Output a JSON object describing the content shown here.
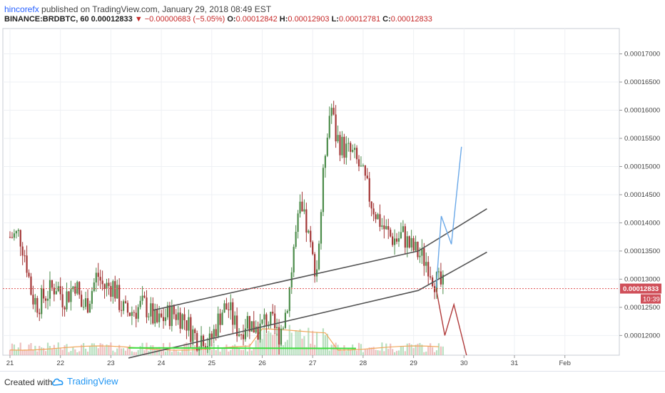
{
  "header": {
    "author": "hincorefx",
    "published": " published on TradingView.com, January 29, 2018 08:49 EST",
    "symbol": "BINANCE:BRDBTC, 60",
    "last": "0.00012833",
    "change": "▼ −0.00000683 (−5.05%)",
    "open_label": "O:",
    "open": "0.00012842",
    "high_label": "H:",
    "high": "0.00012903",
    "low_label": "L:",
    "low": "0.00012781",
    "close_label": "C:",
    "close": "0.00012833"
  },
  "footer": {
    "created_with": "Created with",
    "brand": "TradingView"
  },
  "colors": {
    "up": "#4c8c4a",
    "down": "#a33636",
    "price_line": "#e05252",
    "trend": "#555555",
    "support": "#3ddc3d",
    "proj_up": "#6aa8e8",
    "proj_down": "#b03a3a",
    "volume_ma": "#f2a65a"
  },
  "chart_data": {
    "type": "candlestick",
    "x_ticks": [
      "21",
      "22",
      "23",
      "24",
      "25",
      "26",
      "27",
      "28",
      "29",
      "30",
      "31",
      "Feb"
    ],
    "y_ticks": [
      "0.00017000",
      "0.00016500",
      "0.00016000",
      "0.00015500",
      "0.00015000",
      "0.00014500",
      "0.00014000",
      "0.00013500",
      "0.00013000",
      "0.00012500",
      "0.00012000"
    ],
    "ylim": [
      0.0001165,
      0.0001745
    ],
    "last_price": "0.00012833",
    "countdown": "10:39",
    "approx_close_path": [
      [
        20.0,
        0.0001375
      ],
      [
        20.3,
        0.000138
      ],
      [
        20.5,
        0.000134
      ],
      [
        20.7,
        0.000127
      ],
      [
        20.9,
        0.0001255
      ],
      [
        21.1,
        0.000127
      ],
      [
        21.3,
        0.000128
      ],
      [
        21.5,
        0.000129
      ],
      [
        21.7,
        0.0001265
      ],
      [
        21.9,
        0.0001275
      ],
      [
        22.1,
        0.0001295
      ],
      [
        22.3,
        0.000125
      ],
      [
        22.5,
        0.000126
      ],
      [
        22.8,
        0.000131
      ],
      [
        23.0,
        0.0001285
      ],
      [
        23.3,
        0.000129
      ],
      [
        23.5,
        0.000126
      ],
      [
        23.7,
        0.000124
      ],
      [
        24.0,
        0.0001245
      ],
      [
        24.3,
        0.0001255
      ],
      [
        24.5,
        0.000124
      ],
      [
        24.7,
        0.000122
      ],
      [
        25.0,
        0.0001235
      ],
      [
        25.3,
        0.000124
      ],
      [
        25.6,
        0.000123
      ],
      [
        25.8,
        0.000121
      ],
      [
        26.0,
        0.0001195
      ],
      [
        26.2,
        0.00012
      ],
      [
        26.4,
        0.0001185
      ],
      [
        26.6,
        0.0001215
      ],
      [
        26.8,
        0.0001245
      ],
      [
        27.0,
        0.000125
      ],
      [
        27.2,
        0.000122
      ],
      [
        27.4,
        0.0001205
      ],
      [
        27.6,
        0.000123
      ],
      [
        27.8,
        0.0001215
      ],
      [
        28.0,
        0.000121
      ],
      [
        28.2,
        0.000123
      ],
      [
        28.4,
        0.000122
      ],
      [
        28.6,
        0.00012
      ],
      [
        28.8,
        0.000123
      ],
      [
        29.0,
        0.0001295
      ],
      [
        29.1,
        0.0001355
      ],
      [
        29.3,
        0.000142
      ],
      [
        29.5,
        0.0001395
      ],
      [
        29.7,
        0.0001335
      ],
      [
        29.85,
        0.000132
      ],
      [
        30.0,
        0.000144
      ],
      [
        30.15,
        0.000156
      ],
      [
        30.3,
        0.000161
      ],
      [
        30.45,
        0.0001555
      ],
      [
        30.6,
        0.000154
      ],
      [
        30.75,
        0.000153
      ],
      [
        31.0,
        0.000152
      ],
      [
        31.2,
        0.00015
      ],
      [
        31.4,
        0.000147
      ],
      [
        31.6,
        0.0001435
      ],
      [
        31.8,
        0.000141
      ],
      [
        32.0,
        0.000139
      ],
      [
        32.2,
        0.0001375
      ],
      [
        32.4,
        0.000137
      ],
      [
        32.6,
        0.000138
      ],
      [
        32.8,
        0.000136
      ],
      [
        33.0,
        0.000135
      ],
      [
        33.2,
        0.000134
      ],
      [
        33.4,
        0.000133
      ],
      [
        33.6,
        0.00013
      ],
      [
        33.8,
        0.000129
      ],
      [
        33.95,
        0.0001283
      ]
    ],
    "drawings": {
      "channel_upper": [
        [
          24.6,
          0.0001245
        ],
        [
          33.1,
          0.000135
        ],
        [
          35.3,
          0.0001425
        ]
      ],
      "channel_lower": [
        [
          23.8,
          0.000116
        ],
        [
          33.1,
          0.000128
        ],
        [
          35.3,
          0.0001348
        ]
      ],
      "support_line": [
        [
          23.8,
          0.0001178
        ],
        [
          31.1,
          0.0001177
        ]
      ],
      "projection_up": [
        [
          29.45,
          0.0001285
        ],
        [
          29.55,
          0.0001412
        ],
        [
          29.75,
          0.0001362
        ],
        [
          29.95,
          0.0001535
        ]
      ],
      "projection_down": [
        [
          29.45,
          0.0001282
        ],
        [
          29.62,
          0.00012
        ],
        [
          29.8,
          0.0001255
        ],
        [
          30.05,
          0.0001165
        ]
      ]
    }
  }
}
